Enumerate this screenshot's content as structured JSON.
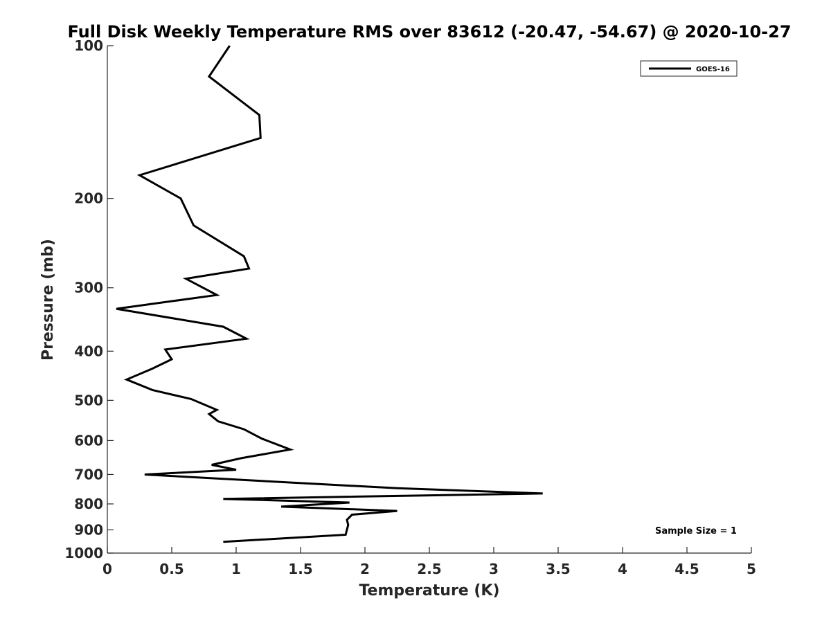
{
  "chart_data": {
    "type": "line",
    "title": "Full Disk Weekly Temperature RMS over 83612 (-20.47, -54.67) @ 2020-10-27",
    "xlabel": "Temperature (K)",
    "ylabel": "Pressure (mb)",
    "xlim": [
      0,
      5
    ],
    "ylim": [
      100,
      1000
    ],
    "yscale": "log",
    "y_reversed": true,
    "grid": false,
    "x_ticks": [
      "0",
      "0.5",
      "1",
      "1.5",
      "2",
      "2.5",
      "3",
      "3.5",
      "4",
      "4.5",
      "5"
    ],
    "x_tick_values": [
      0,
      0.5,
      1,
      1.5,
      2,
      2.5,
      3,
      3.5,
      4,
      4.5,
      5
    ],
    "y_ticks": [
      "100",
      "200",
      "300",
      "400",
      "500",
      "600",
      "700",
      "800",
      "900",
      "1000"
    ],
    "y_tick_values": [
      100,
      200,
      300,
      400,
      500,
      600,
      700,
      800,
      900,
      1000
    ],
    "legend_position": "top-right",
    "color": "#000000",
    "series": [
      {
        "name": "GOES-16",
        "x": [
          0.95,
          0.79,
          1.18,
          1.19,
          0.25,
          0.57,
          0.67,
          1.06,
          1.1,
          0.61,
          0.85,
          0.07,
          0.9,
          1.08,
          0.45,
          0.5,
          0.35,
          0.15,
          0.35,
          0.65,
          0.85,
          0.79,
          0.86,
          1.06,
          1.2,
          1.42,
          1.04,
          0.81,
          1.0,
          0.29,
          0.9,
          2.25,
          3.38,
          0.9,
          1.88,
          1.35,
          2.25,
          1.9,
          1.86,
          1.87,
          1.85,
          0.9
        ],
        "y": [
          100,
          115,
          137,
          152,
          180,
          200,
          226,
          260,
          275,
          288,
          310,
          330,
          358,
          378,
          397,
          415,
          433,
          455,
          477,
          497,
          522,
          532,
          550,
          570,
          595,
          625,
          650,
          670,
          685,
          700,
          714,
          745,
          763,
          782,
          795,
          810,
          826,
          840,
          860,
          880,
          920,
          950
        ]
      }
    ],
    "annotations": [
      "Sample Size = 1"
    ]
  }
}
